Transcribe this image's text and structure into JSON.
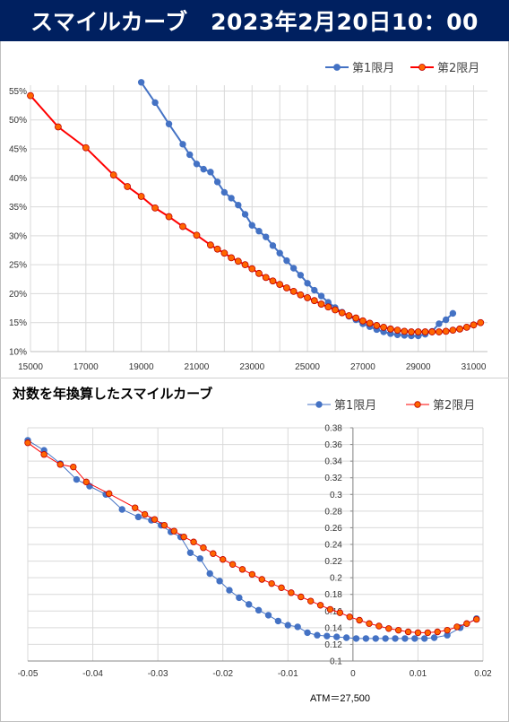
{
  "header": {
    "title": "スマイルカーブ　2023年2月20日10：00"
  },
  "chart2_title": "対数を年換算したスマイルカーブ",
  "atm_note": "ATM＝27,500",
  "colors": {
    "header_bg": "#002060",
    "series1": "#4472C4",
    "series2": "#FF0000",
    "series2_fill": "#FF6600"
  },
  "chart_data": [
    {
      "type": "line",
      "title": "",
      "xlabel": "",
      "ylabel": "",
      "xlim": [
        15000,
        31500
      ],
      "ylim": [
        0.1,
        0.56
      ],
      "x_ticks": [
        "15000",
        "17000",
        "19000",
        "21000",
        "23000",
        "25000",
        "27000",
        "29000",
        "31000"
      ],
      "y_ticks": [
        "10%",
        "15%",
        "20%",
        "25%",
        "30%",
        "35%",
        "40%",
        "45%",
        "50%",
        "55%"
      ],
      "grid": true,
      "legend_position": "top-right",
      "series": [
        {
          "name": "第1限月",
          "color": "#4472C4",
          "x": [
            19000,
            19500,
            20000,
            20500,
            20750,
            21000,
            21250,
            21500,
            21750,
            22000,
            22250,
            22500,
            22750,
            23000,
            23250,
            23500,
            23750,
            24000,
            24250,
            24500,
            24750,
            25000,
            25250,
            25500,
            25750,
            26000,
            26250,
            26500,
            26750,
            27000,
            27250,
            27500,
            27750,
            28000,
            28250,
            28500,
            28750,
            29000,
            29250,
            29500,
            29750,
            30000,
            30250
          ],
          "values": [
            0.565,
            0.53,
            0.493,
            0.458,
            0.44,
            0.424,
            0.415,
            0.41,
            0.393,
            0.375,
            0.365,
            0.353,
            0.337,
            0.318,
            0.308,
            0.298,
            0.283,
            0.27,
            0.257,
            0.244,
            0.232,
            0.218,
            0.206,
            0.196,
            0.185,
            0.176,
            0.168,
            0.161,
            0.155,
            0.148,
            0.143,
            0.138,
            0.134,
            0.131,
            0.129,
            0.128,
            0.127,
            0.127,
            0.13,
            0.135,
            0.148,
            0.155,
            0.166
          ]
        },
        {
          "name": "第2限月",
          "color": "#FF0000",
          "x": [
            15000,
            16000,
            17000,
            18000,
            18500,
            19000,
            19500,
            20000,
            20500,
            21000,
            21500,
            21750,
            22000,
            22250,
            22500,
            22750,
            23000,
            23250,
            23500,
            23750,
            24000,
            24250,
            24500,
            24750,
            25000,
            25250,
            25500,
            25750,
            26000,
            26250,
            26500,
            26750,
            27000,
            27250,
            27500,
            27750,
            28000,
            28250,
            28500,
            28750,
            29000,
            29250,
            29500,
            29750,
            30000,
            30250,
            30500,
            30750,
            31000,
            31250
          ],
          "values": [
            0.542,
            0.488,
            0.452,
            0.405,
            0.385,
            0.368,
            0.348,
            0.333,
            0.316,
            0.301,
            0.284,
            0.277,
            0.27,
            0.262,
            0.256,
            0.25,
            0.243,
            0.235,
            0.228,
            0.222,
            0.216,
            0.21,
            0.204,
            0.198,
            0.193,
            0.188,
            0.182,
            0.177,
            0.172,
            0.167,
            0.162,
            0.158,
            0.153,
            0.149,
            0.145,
            0.142,
            0.139,
            0.137,
            0.135,
            0.134,
            0.134,
            0.134,
            0.134,
            0.134,
            0.135,
            0.137,
            0.139,
            0.142,
            0.146,
            0.15
          ]
        }
      ]
    },
    {
      "type": "line",
      "title": "対数を年換算したスマイルカーブ",
      "xlabel": "",
      "ylabel": "",
      "xlim": [
        -0.05,
        0.02
      ],
      "ylim": [
        0.1,
        0.38
      ],
      "x_ticks": [
        "-0.05",
        "-0.04",
        "-0.03",
        "-0.02",
        "-0.01",
        "0",
        "0.01",
        "0.02"
      ],
      "y_ticks": [
        "0.1",
        "0.12",
        "0.14",
        "0.16",
        "0.18",
        "0.2",
        "0.22",
        "0.24",
        "0.26",
        "0.28",
        "0.3",
        "0.32",
        "0.34",
        "0.36",
        "0.38"
      ],
      "grid": true,
      "legend_position": "top-right",
      "series": [
        {
          "name": "第1限月",
          "color": "#4472C4",
          "x": [
            -0.05,
            -0.0475,
            -0.045,
            -0.0425,
            -0.0405,
            -0.038,
            -0.0355,
            -0.033,
            -0.031,
            -0.0295,
            -0.028,
            -0.0265,
            -0.025,
            -0.0235,
            -0.022,
            -0.0205,
            -0.019,
            -0.0175,
            -0.016,
            -0.0145,
            -0.013,
            -0.0115,
            -0.01,
            -0.0085,
            -0.007,
            -0.0055,
            -0.004,
            -0.0025,
            -0.001,
            0.0005,
            0.002,
            0.0035,
            0.005,
            0.0065,
            0.008,
            0.0095,
            0.011,
            0.0125,
            0.0145,
            0.0165,
            0.019
          ],
          "values": [
            0.365,
            0.353,
            0.337,
            0.318,
            0.31,
            0.3,
            0.282,
            0.273,
            0.269,
            0.263,
            0.255,
            0.249,
            0.23,
            0.223,
            0.205,
            0.196,
            0.185,
            0.176,
            0.168,
            0.161,
            0.155,
            0.148,
            0.143,
            0.141,
            0.134,
            0.131,
            0.13,
            0.129,
            0.128,
            0.127,
            0.127,
            0.127,
            0.127,
            0.127,
            0.127,
            0.127,
            0.127,
            0.128,
            0.131,
            0.14,
            0.151
          ]
        },
        {
          "name": "第2限月",
          "color": "#FF0000",
          "x": [
            -0.05,
            -0.0475,
            -0.045,
            -0.043,
            -0.041,
            -0.0375,
            -0.0335,
            -0.032,
            -0.0305,
            -0.029,
            -0.0275,
            -0.026,
            -0.0245,
            -0.023,
            -0.0215,
            -0.02,
            -0.0185,
            -0.017,
            -0.0155,
            -0.014,
            -0.0125,
            -0.011,
            -0.0095,
            -0.008,
            -0.0065,
            -0.005,
            -0.0035,
            -0.002,
            -0.0005,
            0.001,
            0.0025,
            0.004,
            0.0055,
            0.007,
            0.0085,
            0.01,
            0.0115,
            0.013,
            0.0145,
            0.016,
            0.0175,
            0.019
          ],
          "values": [
            0.362,
            0.348,
            0.336,
            0.333,
            0.315,
            0.301,
            0.284,
            0.276,
            0.27,
            0.263,
            0.256,
            0.249,
            0.243,
            0.236,
            0.229,
            0.222,
            0.216,
            0.21,
            0.204,
            0.198,
            0.193,
            0.188,
            0.182,
            0.177,
            0.172,
            0.167,
            0.162,
            0.158,
            0.153,
            0.149,
            0.145,
            0.142,
            0.139,
            0.137,
            0.135,
            0.134,
            0.134,
            0.135,
            0.137,
            0.141,
            0.145,
            0.15
          ]
        }
      ]
    }
  ]
}
